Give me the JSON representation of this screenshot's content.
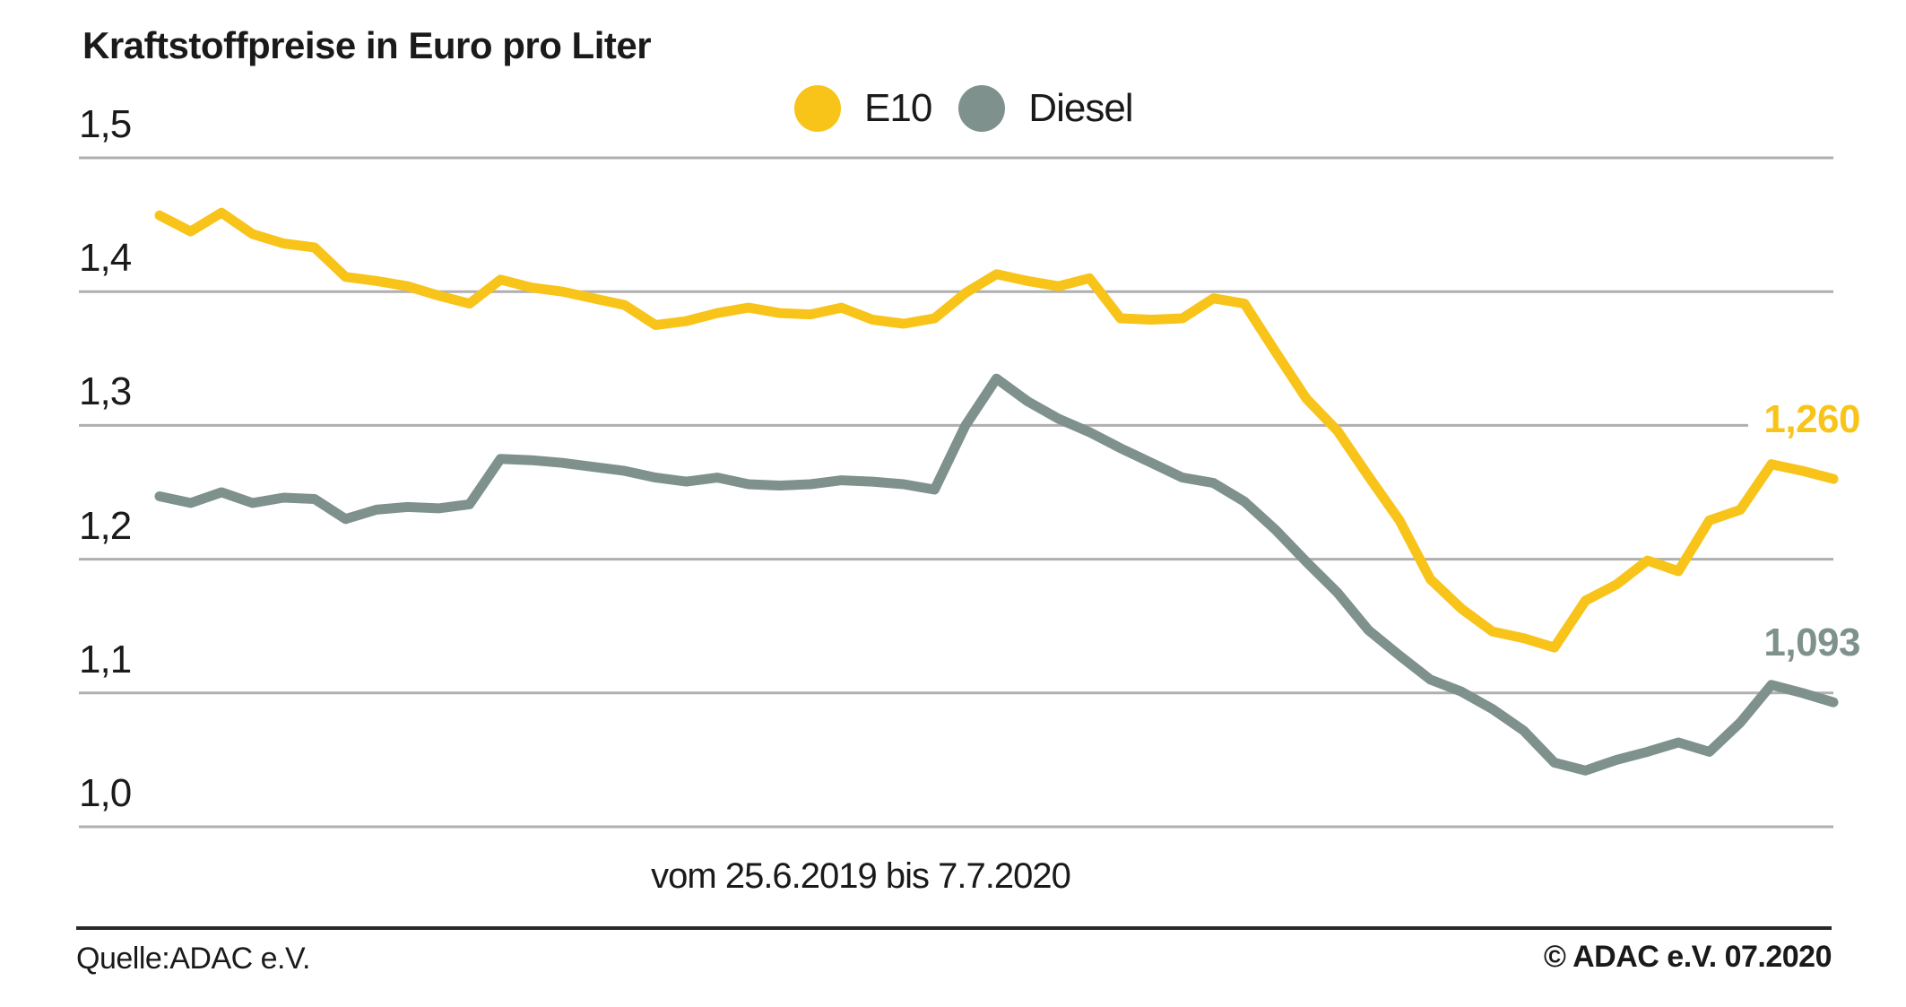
{
  "title": "Kraftstoffpreise in Euro pro Liter",
  "legend": {
    "e10": "E10",
    "diesel": "Diesel"
  },
  "caption": "vom 25.6.2019 bis 7.7.2020",
  "end_labels": {
    "e10": "1,260",
    "diesel": "1,093"
  },
  "footer": {
    "source": "Quelle:ADAC e.V.",
    "copyright": "© ADAC e.V. 07.2020"
  },
  "colors": {
    "e10": "#F8C41A",
    "diesel": "#7E918C",
    "grid": "#AFAFAF",
    "text": "#1A1A1A",
    "rule": "#26292B"
  },
  "chart_data": {
    "type": "line",
    "title": "Kraftstoffpreise in Euro pro Liter",
    "ylabel": "Euro pro Liter",
    "x_range": [
      "25.6.2019",
      "7.7.2020"
    ],
    "x_note": "weekly values, 55 points",
    "ylim": [
      1.0,
      1.5
    ],
    "grid": "horizontal",
    "legend_position": "top-center",
    "yticks": [
      {
        "value": 1.5,
        "label": "1,5"
      },
      {
        "value": 1.4,
        "label": "1,4"
      },
      {
        "value": 1.3,
        "label": "1,3"
      },
      {
        "value": 1.2,
        "label": "1,2"
      },
      {
        "value": 1.1,
        "label": "1,1"
      },
      {
        "value": 1.0,
        "label": "1,0"
      }
    ],
    "series": [
      {
        "name": "E10",
        "color_key": "e10",
        "last_value": 1.26,
        "last_label": "1,260",
        "values": [
          1.457,
          1.445,
          1.459,
          1.443,
          1.436,
          1.433,
          1.411,
          1.408,
          1.404,
          1.397,
          1.391,
          1.409,
          1.403,
          1.4,
          1.395,
          1.39,
          1.375,
          1.378,
          1.384,
          1.388,
          1.384,
          1.383,
          1.388,
          1.379,
          1.376,
          1.38,
          1.399,
          1.413,
          1.408,
          1.404,
          1.41,
          1.38,
          1.379,
          1.38,
          1.395,
          1.391,
          1.355,
          1.32,
          1.296,
          1.262,
          1.229,
          1.185,
          1.163,
          1.146,
          1.141,
          1.134,
          1.169,
          1.181,
          1.199,
          1.191,
          1.229,
          1.237,
          1.271,
          1.266,
          1.26
        ]
      },
      {
        "name": "Diesel",
        "color_key": "diesel",
        "last_value": 1.093,
        "last_label": "1,093",
        "values": [
          1.247,
          1.242,
          1.25,
          1.242,
          1.246,
          1.245,
          1.23,
          1.237,
          1.239,
          1.238,
          1.241,
          1.275,
          1.274,
          1.272,
          1.269,
          1.266,
          1.261,
          1.258,
          1.261,
          1.256,
          1.255,
          1.256,
          1.259,
          1.258,
          1.256,
          1.252,
          1.3,
          1.335,
          1.318,
          1.305,
          1.295,
          1.283,
          1.272,
          1.261,
          1.257,
          1.243,
          1.222,
          1.198,
          1.175,
          1.147,
          1.128,
          1.11,
          1.101,
          1.088,
          1.072,
          1.048,
          1.042,
          1.05,
          1.056,
          1.063,
          1.056,
          1.078,
          1.106,
          1.1,
          1.093
        ]
      }
    ]
  }
}
